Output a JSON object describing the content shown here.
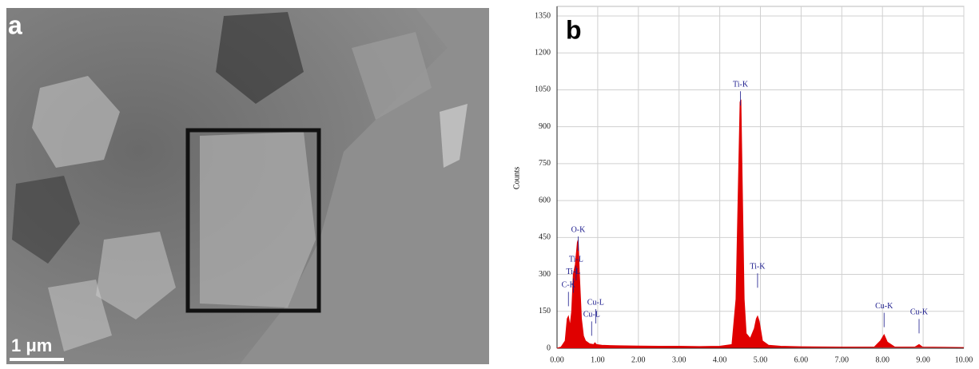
{
  "panel_a": {
    "label": "a",
    "scale_bar": "1 μm"
  },
  "chart_data": {
    "type": "area",
    "label": "b",
    "ylabel": "Counts",
    "color": "#e00000",
    "grid": true,
    "xlim": [
      0,
      10
    ],
    "ylim": [
      0,
      1350
    ],
    "xticks": [
      {
        "value": 0,
        "label": "0.00"
      },
      {
        "value": 1,
        "label": "1.00"
      },
      {
        "value": 2,
        "label": "2.00"
      },
      {
        "value": 3,
        "label": "3.00"
      },
      {
        "value": 4,
        "label": "4.00"
      },
      {
        "value": 5,
        "label": "5.00"
      },
      {
        "value": 6,
        "label": "6.00"
      },
      {
        "value": 7,
        "label": "7.00"
      },
      {
        "value": 8,
        "label": "8.00"
      },
      {
        "value": 9,
        "label": "9.00"
      },
      {
        "value": 10,
        "label": "10.00"
      }
    ],
    "yticks": [
      0,
      150,
      300,
      450,
      600,
      750,
      900,
      1050,
      1200,
      1350
    ],
    "x": [
      0,
      0.1,
      0.2,
      0.25,
      0.28,
      0.32,
      0.36,
      0.4,
      0.45,
      0.5,
      0.52,
      0.55,
      0.6,
      0.65,
      0.7,
      0.8,
      0.9,
      0.93,
      0.97,
      1.1,
      1.5,
      2,
      2.5,
      3,
      3.5,
      4,
      4.3,
      4.4,
      4.45,
      4.5,
      4.52,
      4.55,
      4.6,
      4.65,
      4.75,
      4.85,
      4.9,
      4.93,
      4.97,
      5.05,
      5.2,
      5.5,
      6,
      7,
      7.8,
      7.95,
      8.04,
      8.12,
      8.3,
      8.8,
      8.9,
      8.98,
      9.5,
      10
    ],
    "values": [
      0,
      5,
      30,
      120,
      130,
      90,
      150,
      300,
      340,
      430,
      440,
      300,
      120,
      50,
      30,
      18,
      15,
      22,
      15,
      12,
      10,
      9,
      8,
      8,
      7,
      8,
      15,
      200,
      600,
      1000,
      1010,
      700,
      200,
      60,
      40,
      80,
      120,
      130,
      110,
      30,
      12,
      8,
      6,
      5,
      5,
      30,
      55,
      25,
      5,
      5,
      15,
      5,
      4,
      3
    ],
    "annotations": [
      {
        "text": "O-K",
        "x": 0.52,
        "y": 480
      },
      {
        "text": "Ti-L",
        "x": 0.47,
        "y": 360
      },
      {
        "text": "Ti-L",
        "x": 0.4,
        "y": 310
      },
      {
        "text": "C-K",
        "x": 0.28,
        "y": 255
      },
      {
        "text": "Cu-L",
        "x": 0.95,
        "y": 185
      },
      {
        "text": "Cu-L",
        "x": 0.85,
        "y": 135
      },
      {
        "text": "Ti-K",
        "x": 4.51,
        "y": 1070
      },
      {
        "text": "Ti-K",
        "x": 4.93,
        "y": 330
      },
      {
        "text": "Cu-K",
        "x": 8.04,
        "y": 170
      },
      {
        "text": "Cu-K",
        "x": 8.9,
        "y": 145
      }
    ]
  }
}
